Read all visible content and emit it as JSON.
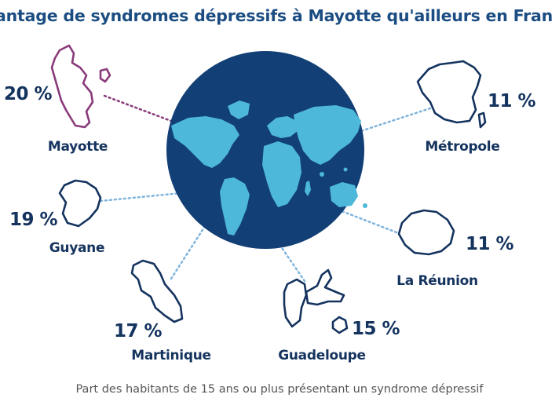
{
  "title": "antage de syndromes dépressifs à Mayotte qu'ailleurs en Fran",
  "footer": "Part des habitants de 15 ans ou plus présentant un syndrome dépressif",
  "colors": {
    "title": "#1b4d82",
    "text": "#14335e",
    "globe_ocean": "#123f75",
    "globe_land": "#4db8d9",
    "highlight": "#8a3a7a",
    "connector": "#7fb4dc",
    "footer": "#555555"
  },
  "regions": [
    {
      "id": "mayotte",
      "name": "Mayotte",
      "value": "20 %",
      "highlight": true
    },
    {
      "id": "guyane",
      "name": "Guyane",
      "value": "19 %",
      "highlight": false
    },
    {
      "id": "martinique",
      "name": "Martinique",
      "value": "17 %",
      "highlight": false
    },
    {
      "id": "guadeloupe",
      "name": "Guadeloupe",
      "value": "15 %",
      "highlight": false
    },
    {
      "id": "reunion",
      "name": "La Réunion",
      "value": "11 %",
      "highlight": false
    },
    {
      "id": "metropole",
      "name": "Métropole",
      "value": "11 %",
      "highlight": false
    }
  ]
}
